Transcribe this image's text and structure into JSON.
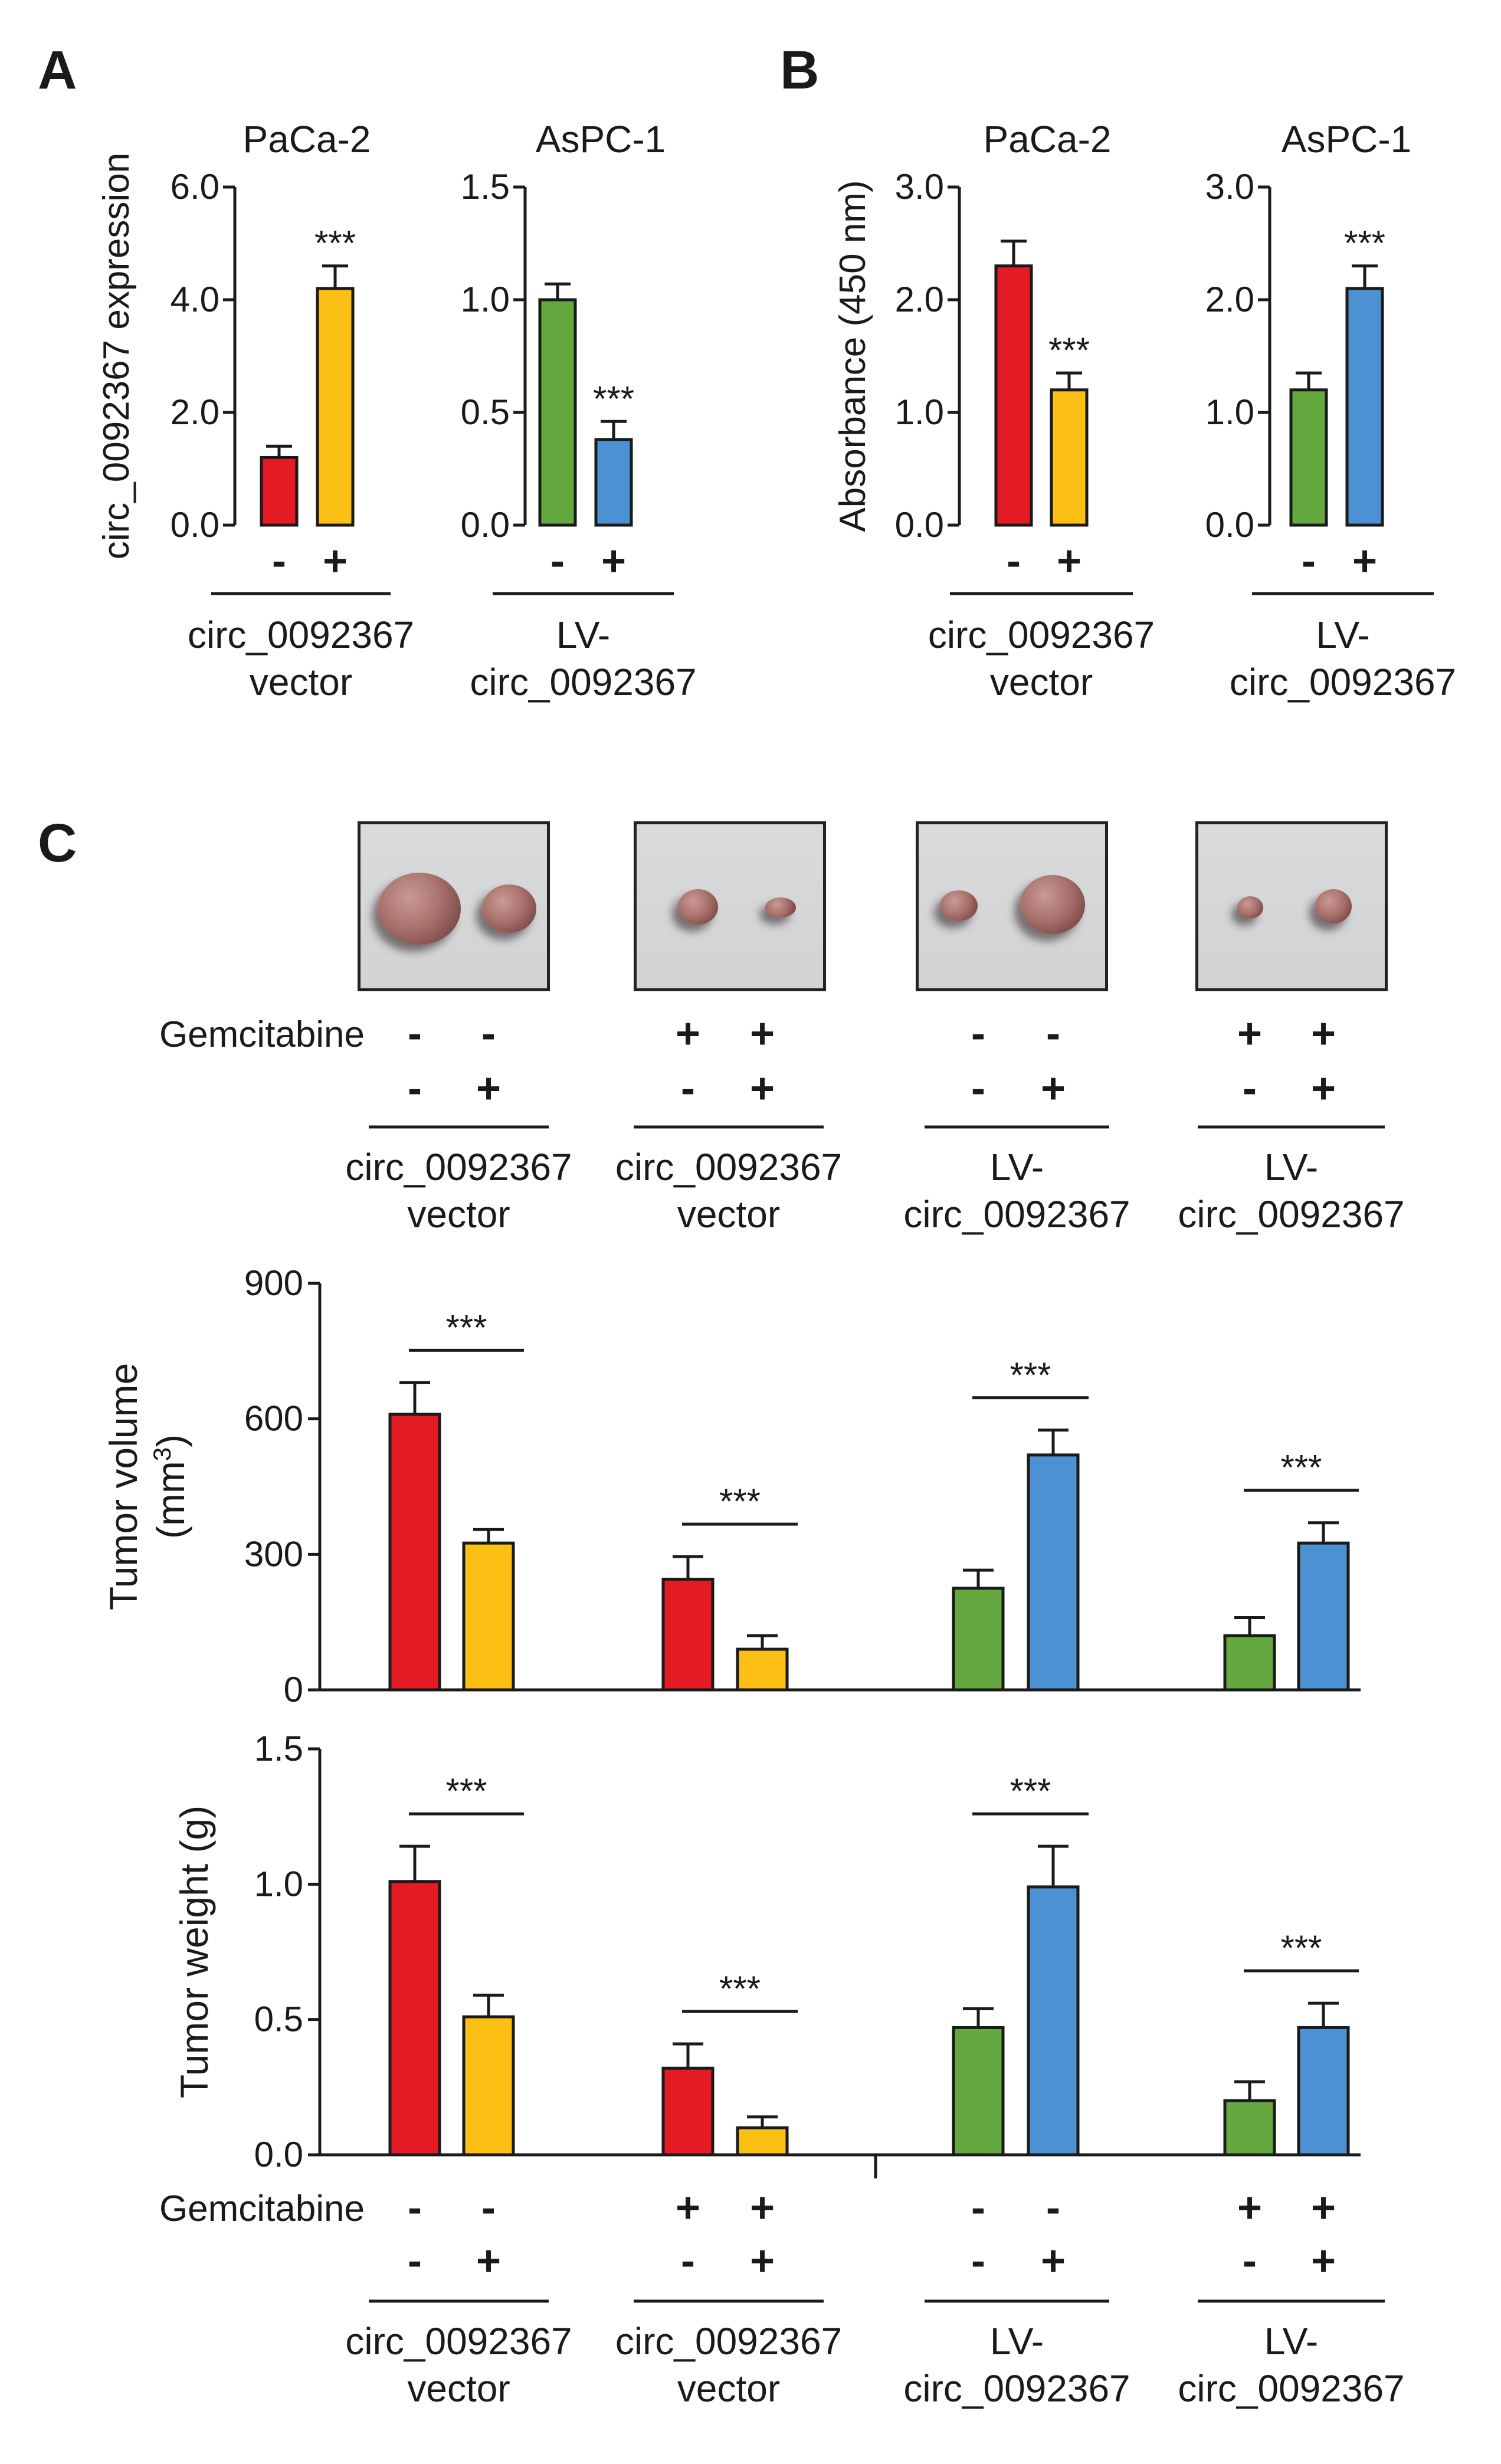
{
  "colors": {
    "red": "#e41a24",
    "yellow": "#fcbf13",
    "green": "#64a93f",
    "blue": "#4c92d2",
    "ink": "#1a1a1a"
  },
  "panels": {
    "A": "A",
    "B": "B",
    "C": "C"
  },
  "labels": {
    "circ_vector_line1": "circ_0092367",
    "circ_vector_line2": "vector",
    "lv_line1": "LV-",
    "lv_line2": "circ_0092367",
    "gemcitabine": "Gemcitabine",
    "minus": "-",
    "plus": "+",
    "sig": "***"
  },
  "chart_data": [
    {
      "id": "A1",
      "type": "bar",
      "title": "PaCa-2",
      "ylabel": "circ_0092367 expression",
      "ylim": [
        0,
        6.0
      ],
      "yticks": [
        "0.0",
        "2.0",
        "4.0",
        "6.0"
      ],
      "ytick_values": [
        0,
        2,
        4,
        6
      ],
      "categories": [
        "-",
        "+"
      ],
      "values": [
        1.2,
        4.2
      ],
      "errors": [
        0.2,
        0.4
      ],
      "bar_colors": [
        "red",
        "yellow"
      ],
      "significance": [
        "",
        "***"
      ],
      "group_label": [
        "circ_0092367",
        "vector"
      ]
    },
    {
      "id": "A2",
      "type": "bar",
      "title": "AsPC-1",
      "ylabel": "",
      "ylim": [
        0,
        1.5
      ],
      "yticks": [
        "0.0",
        "0.5",
        "1.0",
        "1.5"
      ],
      "ytick_values": [
        0,
        0.5,
        1.0,
        1.5
      ],
      "categories": [
        "-",
        "+"
      ],
      "values": [
        1.0,
        0.38
      ],
      "errors": [
        0.07,
        0.08
      ],
      "bar_colors": [
        "green",
        "blue"
      ],
      "significance": [
        "",
        "***"
      ],
      "group_label": [
        "LV-",
        "circ_0092367"
      ]
    },
    {
      "id": "B1",
      "type": "bar",
      "title": "PaCa-2",
      "ylabel": "Absorbance (450 nm)",
      "ylim": [
        0,
        3.0
      ],
      "yticks": [
        "0.0",
        "1.0",
        "2.0",
        "3.0"
      ],
      "ytick_values": [
        0,
        1,
        2,
        3
      ],
      "categories": [
        "-",
        "+"
      ],
      "values": [
        2.3,
        1.2
      ],
      "errors": [
        0.22,
        0.15
      ],
      "bar_colors": [
        "red",
        "yellow"
      ],
      "significance": [
        "",
        "***"
      ],
      "group_label": [
        "circ_0092367",
        "vector"
      ]
    },
    {
      "id": "B2",
      "type": "bar",
      "title": "AsPC-1",
      "ylabel": "",
      "ylim": [
        0,
        3.0
      ],
      "yticks": [
        "0.0",
        "1.0",
        "2.0",
        "3.0"
      ],
      "ytick_values": [
        0,
        1,
        2,
        3
      ],
      "categories": [
        "-",
        "+"
      ],
      "values": [
        1.2,
        2.1
      ],
      "errors": [
        0.15,
        0.2
      ],
      "bar_colors": [
        "green",
        "blue"
      ],
      "significance": [
        "",
        "***"
      ],
      "group_label": [
        "LV-",
        "circ_0092367"
      ]
    },
    {
      "id": "C_volume",
      "type": "bar",
      "ylabel": "Tumor volume",
      "ylabel_unit": "(mm",
      "ylabel_sup": "3",
      "ylabel_close": ")",
      "ylim": [
        0,
        900
      ],
      "yticks": [
        "0",
        "300",
        "600",
        "900"
      ],
      "ytick_values": [
        0,
        300,
        600,
        900
      ],
      "groups": [
        {
          "gemcitabine": [
            "-",
            "-"
          ],
          "vector": [
            "-",
            "+"
          ],
          "values": [
            610,
            325
          ],
          "errors": [
            70,
            30
          ],
          "bar_colors": [
            "red",
            "yellow"
          ],
          "significance": "***"
        },
        {
          "gemcitabine": [
            "+",
            "+"
          ],
          "vector": [
            "-",
            "+"
          ],
          "values": [
            245,
            90
          ],
          "errors": [
            50,
            30
          ],
          "bar_colors": [
            "red",
            "yellow"
          ],
          "significance": "***"
        },
        {
          "gemcitabine": [
            "-",
            "-"
          ],
          "vector": [
            "-",
            "+"
          ],
          "values": [
            225,
            520
          ],
          "errors": [
            40,
            55
          ],
          "bar_colors": [
            "green",
            "blue"
          ],
          "significance": "***"
        },
        {
          "gemcitabine": [
            "+",
            "+"
          ],
          "vector": [
            "-",
            "+"
          ],
          "values": [
            120,
            325
          ],
          "errors": [
            40,
            45
          ],
          "bar_colors": [
            "green",
            "blue"
          ],
          "significance": "***"
        }
      ]
    },
    {
      "id": "C_weight",
      "type": "bar",
      "ylabel": "Tumor weight (g)",
      "ylim": [
        0,
        1.5
      ],
      "yticks": [
        "0.0",
        "0.5",
        "1.0",
        "1.5"
      ],
      "ytick_values": [
        0,
        0.5,
        1.0,
        1.5
      ],
      "groups": [
        {
          "gemcitabine": [
            "-",
            "-"
          ],
          "vector": [
            "-",
            "+"
          ],
          "values": [
            1.01,
            0.51
          ],
          "errors": [
            0.13,
            0.08
          ],
          "bar_colors": [
            "red",
            "yellow"
          ],
          "significance": "***"
        },
        {
          "gemcitabine": [
            "+",
            "+"
          ],
          "vector": [
            "-",
            "+"
          ],
          "values": [
            0.32,
            0.1
          ],
          "errors": [
            0.09,
            0.04
          ],
          "bar_colors": [
            "red",
            "yellow"
          ],
          "significance": "***"
        },
        {
          "gemcitabine": [
            "-",
            "-"
          ],
          "vector": [
            "-",
            "+"
          ],
          "values": [
            0.47,
            0.99
          ],
          "errors": [
            0.07,
            0.15
          ],
          "bar_colors": [
            "green",
            "blue"
          ],
          "significance": "***"
        },
        {
          "gemcitabine": [
            "+",
            "+"
          ],
          "vector": [
            "-",
            "+"
          ],
          "values": [
            0.2,
            0.47
          ],
          "errors": [
            0.07,
            0.09
          ],
          "bar_colors": [
            "green",
            "blue"
          ],
          "significance": "***"
        }
      ]
    }
  ],
  "photos": [
    {
      "group": 1,
      "tumors": [
        "large",
        "medium"
      ]
    },
    {
      "group": 2,
      "tumors": [
        "small",
        "tiny"
      ]
    },
    {
      "group": 3,
      "tumors": [
        "small",
        "large"
      ]
    },
    {
      "group": 4,
      "tumors": [
        "tiny",
        "small"
      ]
    }
  ]
}
